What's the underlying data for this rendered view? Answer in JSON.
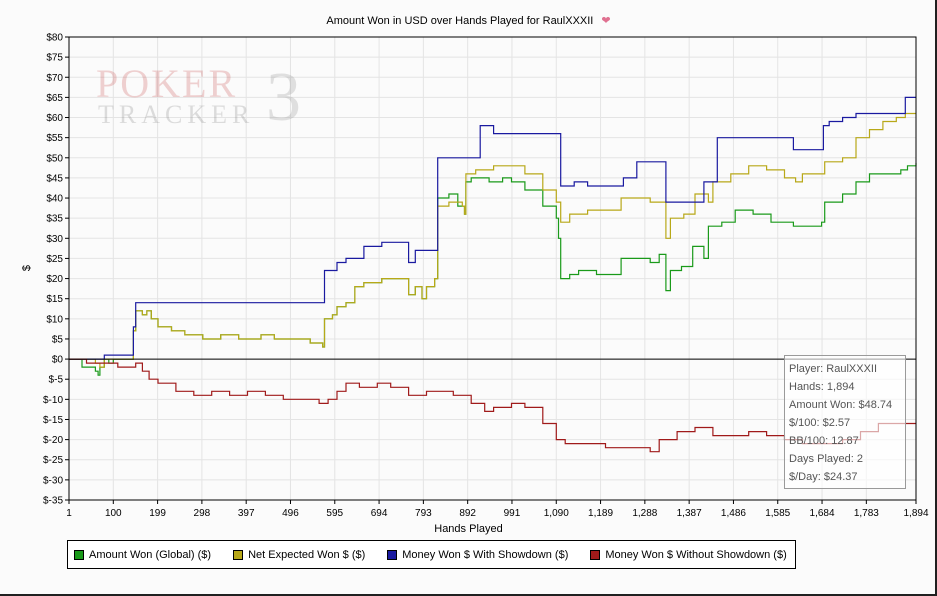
{
  "chart_data": {
    "type": "line",
    "title": "Amount Won in USD over Hands Played for RaulXXXII",
    "xlabel": "Hands Played",
    "ylabel": "$",
    "xlim": [
      1,
      1894
    ],
    "ylim": [
      -35,
      80
    ],
    "x_ticks": [
      1,
      100,
      199,
      298,
      397,
      496,
      595,
      694,
      793,
      892,
      991,
      1090,
      1189,
      1288,
      1387,
      1486,
      1585,
      1684,
      1783,
      1894
    ],
    "x_tick_labels": [
      "1",
      "100",
      "199",
      "298",
      "397",
      "496",
      "595",
      "694",
      "793",
      "892",
      "991",
      "1,090",
      "1,189",
      "1,288",
      "1,387",
      "1,486",
      "1,585",
      "1,684",
      "1,783",
      "1,894"
    ],
    "y_ticks": [
      80,
      75,
      70,
      65,
      60,
      55,
      50,
      45,
      40,
      35,
      30,
      25,
      20,
      15,
      10,
      5,
      0,
      -5,
      -10,
      -15,
      -20,
      -25,
      -30,
      -35
    ],
    "y_tick_labels": [
      "$80",
      "$75",
      "$70",
      "$65",
      "$60",
      "$55",
      "$50",
      "$45",
      "$40",
      "$35",
      "$30",
      "$25",
      "$20",
      "$15",
      "$10",
      "$5",
      "$0",
      "$-5",
      "$-10",
      "$-15",
      "$-20",
      "$-25",
      "$-30",
      "$-35"
    ],
    "grid": true,
    "legend_position": "bottom",
    "series": [
      {
        "name": "Amount Won (Global) ($)",
        "color": "#1a9a1a",
        "points": [
          [
            1,
            0
          ],
          [
            20,
            0
          ],
          [
            30,
            -2
          ],
          [
            50,
            -2
          ],
          [
            60,
            -3
          ],
          [
            66,
            -4
          ],
          [
            70,
            -2
          ],
          [
            80,
            0
          ],
          [
            90,
            -1
          ],
          [
            100,
            0
          ],
          [
            118,
            0
          ],
          [
            142,
            0
          ],
          [
            145,
            7
          ],
          [
            150,
            12
          ],
          [
            165,
            11
          ],
          [
            175,
            12
          ],
          [
            185,
            10
          ],
          [
            200,
            8
          ],
          [
            230,
            7
          ],
          [
            260,
            6
          ],
          [
            300,
            5
          ],
          [
            340,
            6
          ],
          [
            380,
            5
          ],
          [
            430,
            6
          ],
          [
            460,
            5
          ],
          [
            500,
            5
          ],
          [
            540,
            4
          ],
          [
            568,
            3
          ],
          [
            572,
            10
          ],
          [
            590,
            11
          ],
          [
            600,
            13
          ],
          [
            620,
            14
          ],
          [
            640,
            18
          ],
          [
            660,
            19
          ],
          [
            700,
            20
          ],
          [
            740,
            20
          ],
          [
            760,
            16
          ],
          [
            775,
            18
          ],
          [
            790,
            15
          ],
          [
            800,
            18
          ],
          [
            818,
            20
          ],
          [
            825,
            40
          ],
          [
            850,
            41
          ],
          [
            870,
            38
          ],
          [
            885,
            36
          ],
          [
            888,
            44
          ],
          [
            900,
            45
          ],
          [
            940,
            44
          ],
          [
            970,
            45
          ],
          [
            990,
            44
          ],
          [
            1020,
            42
          ],
          [
            1060,
            38
          ],
          [
            1090,
            35
          ],
          [
            1095,
            30
          ],
          [
            1100,
            20
          ],
          [
            1120,
            21
          ],
          [
            1140,
            22
          ],
          [
            1180,
            21
          ],
          [
            1220,
            21
          ],
          [
            1235,
            25
          ],
          [
            1260,
            25
          ],
          [
            1300,
            24
          ],
          [
            1320,
            26
          ],
          [
            1335,
            17
          ],
          [
            1345,
            22
          ],
          [
            1370,
            23
          ],
          [
            1395,
            28
          ],
          [
            1420,
            25
          ],
          [
            1430,
            33
          ],
          [
            1460,
            34
          ],
          [
            1490,
            37
          ],
          [
            1530,
            36
          ],
          [
            1570,
            34
          ],
          [
            1620,
            33
          ],
          [
            1660,
            33
          ],
          [
            1683,
            34
          ],
          [
            1690,
            39
          ],
          [
            1730,
            41
          ],
          [
            1760,
            44
          ],
          [
            1790,
            46
          ],
          [
            1830,
            46
          ],
          [
            1860,
            47
          ],
          [
            1875,
            48
          ],
          [
            1894,
            48.7
          ]
        ]
      },
      {
        "name": "Net Expected Won $ ($)",
        "color": "#b8a818",
        "points": [
          [
            1,
            0
          ],
          [
            30,
            0
          ],
          [
            60,
            -1
          ],
          [
            70,
            -2
          ],
          [
            80,
            0
          ],
          [
            100,
            0
          ],
          [
            142,
            0
          ],
          [
            145,
            7
          ],
          [
            150,
            12
          ],
          [
            165,
            11
          ],
          [
            175,
            12
          ],
          [
            185,
            10
          ],
          [
            200,
            8
          ],
          [
            230,
            7
          ],
          [
            260,
            6
          ],
          [
            300,
            5
          ],
          [
            340,
            6
          ],
          [
            380,
            5
          ],
          [
            430,
            6
          ],
          [
            460,
            5
          ],
          [
            500,
            5
          ],
          [
            540,
            4
          ],
          [
            568,
            3
          ],
          [
            572,
            10
          ],
          [
            590,
            11
          ],
          [
            600,
            13
          ],
          [
            620,
            14
          ],
          [
            640,
            18
          ],
          [
            660,
            19
          ],
          [
            700,
            20
          ],
          [
            740,
            20
          ],
          [
            760,
            16
          ],
          [
            775,
            18
          ],
          [
            790,
            15
          ],
          [
            800,
            18
          ],
          [
            818,
            20
          ],
          [
            825,
            38
          ],
          [
            850,
            39
          ],
          [
            880,
            38
          ],
          [
            885,
            36
          ],
          [
            888,
            46
          ],
          [
            910,
            47
          ],
          [
            950,
            48
          ],
          [
            990,
            48
          ],
          [
            1020,
            46
          ],
          [
            1060,
            42
          ],
          [
            1090,
            39
          ],
          [
            1100,
            34
          ],
          [
            1120,
            36
          ],
          [
            1160,
            37
          ],
          [
            1200,
            37
          ],
          [
            1235,
            40
          ],
          [
            1300,
            39
          ],
          [
            1320,
            39
          ],
          [
            1335,
            30
          ],
          [
            1345,
            35
          ],
          [
            1375,
            36
          ],
          [
            1400,
            41
          ],
          [
            1430,
            39
          ],
          [
            1440,
            44
          ],
          [
            1480,
            46
          ],
          [
            1520,
            48
          ],
          [
            1560,
            47
          ],
          [
            1600,
            45
          ],
          [
            1625,
            44
          ],
          [
            1640,
            46
          ],
          [
            1684,
            46
          ],
          [
            1690,
            49
          ],
          [
            1730,
            50
          ],
          [
            1760,
            55
          ],
          [
            1790,
            57
          ],
          [
            1820,
            59
          ],
          [
            1850,
            60
          ],
          [
            1870,
            61
          ],
          [
            1894,
            61
          ]
        ]
      },
      {
        "name": "Money Won $ With Showdown ($)",
        "color": "#1a1aa0",
        "points": [
          [
            1,
            0
          ],
          [
            70,
            0
          ],
          [
            80,
            1
          ],
          [
            100,
            1
          ],
          [
            142,
            1
          ],
          [
            145,
            8
          ],
          [
            150,
            14
          ],
          [
            200,
            14
          ],
          [
            260,
            14
          ],
          [
            400,
            14
          ],
          [
            560,
            14
          ],
          [
            568,
            14
          ],
          [
            572,
            22
          ],
          [
            600,
            24
          ],
          [
            620,
            25
          ],
          [
            660,
            28
          ],
          [
            700,
            29
          ],
          [
            740,
            29
          ],
          [
            760,
            24
          ],
          [
            775,
            27
          ],
          [
            810,
            27
          ],
          [
            818,
            27
          ],
          [
            825,
            50
          ],
          [
            900,
            50
          ],
          [
            920,
            58
          ],
          [
            950,
            56
          ],
          [
            990,
            56
          ],
          [
            1040,
            56
          ],
          [
            1090,
            56
          ],
          [
            1100,
            43
          ],
          [
            1130,
            44
          ],
          [
            1160,
            43
          ],
          [
            1200,
            43
          ],
          [
            1240,
            45
          ],
          [
            1270,
            49
          ],
          [
            1300,
            49
          ],
          [
            1335,
            39
          ],
          [
            1380,
            39
          ],
          [
            1420,
            44
          ],
          [
            1450,
            55
          ],
          [
            1500,
            55
          ],
          [
            1560,
            55
          ],
          [
            1600,
            55
          ],
          [
            1620,
            52
          ],
          [
            1680,
            52
          ],
          [
            1684,
            52
          ],
          [
            1687,
            58
          ],
          [
            1700,
            59
          ],
          [
            1730,
            60
          ],
          [
            1760,
            61
          ],
          [
            1860,
            61
          ],
          [
            1870,
            65
          ],
          [
            1894,
            65
          ]
        ]
      },
      {
        "name": "Money Won $ Without Showdown ($)",
        "color": "#a01a1a",
        "points": [
          [
            1,
            0
          ],
          [
            40,
            -1
          ],
          [
            80,
            -1
          ],
          [
            90,
            -1
          ],
          [
            110,
            -2
          ],
          [
            140,
            -2
          ],
          [
            150,
            -1
          ],
          [
            165,
            -3
          ],
          [
            180,
            -5
          ],
          [
            200,
            -6
          ],
          [
            240,
            -8
          ],
          [
            280,
            -9
          ],
          [
            320,
            -8
          ],
          [
            360,
            -9
          ],
          [
            400,
            -8
          ],
          [
            440,
            -9
          ],
          [
            480,
            -10
          ],
          [
            520,
            -10
          ],
          [
            560,
            -11
          ],
          [
            580,
            -10
          ],
          [
            600,
            -8
          ],
          [
            620,
            -6
          ],
          [
            650,
            -7
          ],
          [
            690,
            -6
          ],
          [
            720,
            -7
          ],
          [
            760,
            -9
          ],
          [
            800,
            -8
          ],
          [
            860,
            -9
          ],
          [
            900,
            -11
          ],
          [
            930,
            -13
          ],
          [
            950,
            -12
          ],
          [
            990,
            -11
          ],
          [
            1020,
            -12
          ],
          [
            1060,
            -16
          ],
          [
            1090,
            -20
          ],
          [
            1110,
            -21
          ],
          [
            1150,
            -21
          ],
          [
            1200,
            -22
          ],
          [
            1260,
            -22
          ],
          [
            1300,
            -23
          ],
          [
            1320,
            -20
          ],
          [
            1360,
            -18
          ],
          [
            1400,
            -17
          ],
          [
            1440,
            -19
          ],
          [
            1480,
            -19
          ],
          [
            1520,
            -18
          ],
          [
            1560,
            -19
          ],
          [
            1600,
            -20
          ],
          [
            1640,
            -21
          ],
          [
            1684,
            -21
          ],
          [
            1730,
            -20
          ],
          [
            1770,
            -18
          ],
          [
            1810,
            -16
          ],
          [
            1850,
            -16
          ],
          [
            1894,
            -16
          ]
        ]
      }
    ]
  },
  "stats": {
    "player": "Player: RaulXXXII",
    "hands": "Hands: 1,894",
    "amount_won": "Amount Won: $48.74",
    "per_100": "$/100: $2.57",
    "bb_per_100": "BB/100: 12.87",
    "days_played": "Days Played: 2",
    "per_day": "$/Day: $24.37"
  },
  "watermark": {
    "text1": "POKER",
    "text2": "TRACKER",
    "num": "3"
  }
}
